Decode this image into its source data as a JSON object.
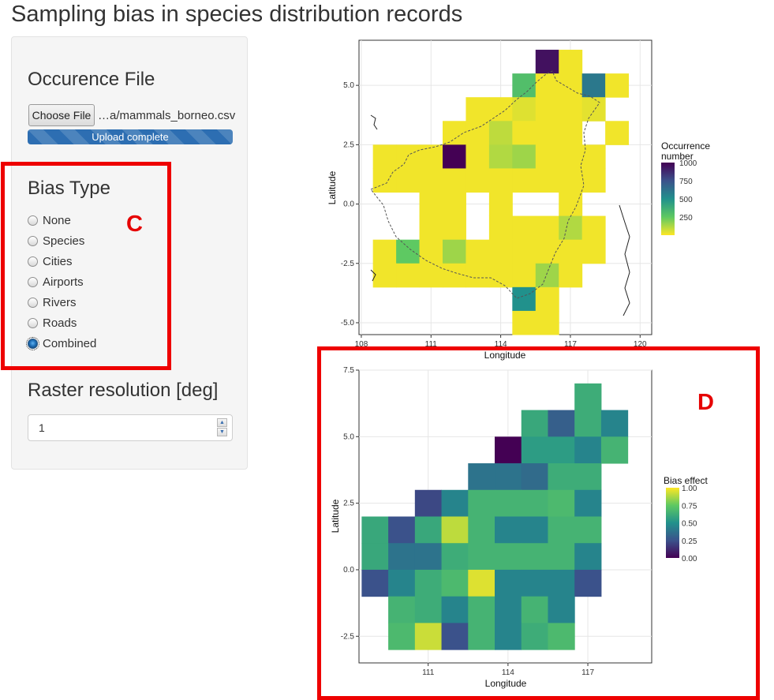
{
  "title": "Sampling bias in species distribution records",
  "sidebar": {
    "occurrence_label": "Occurence File",
    "choose_button": "Choose File",
    "file_name": "…a/mammals_borneo.csv",
    "upload_status": "Upload complete",
    "upload_progress": 1.0,
    "bias_label": "Bias Type",
    "bias_options": [
      "None",
      "Species",
      "Cities",
      "Airports",
      "Rivers",
      "Roads",
      "Combined"
    ],
    "bias_selected": "Combined",
    "raster_label": "Raster resolution [deg]",
    "raster_value": "1"
  },
  "annotations": {
    "c_letter": "C",
    "d_letter": "D",
    "box_color": "#ee0000"
  },
  "chart_data": [
    {
      "type": "heatmap",
      "title": "",
      "xlabel": "Longitude",
      "ylabel": "Latitude",
      "xticks": [
        "108",
        "111",
        "114",
        "117",
        "120"
      ],
      "yticks": [
        "5.0",
        "2.5",
        "0.0",
        "-2.5",
        "-5.0"
      ],
      "xlim": [
        107.9,
        120.5
      ],
      "ylim": [
        -5.5,
        6.9
      ],
      "legend_title": "Occurrence\nnumber",
      "legend_ticks": [
        "1000",
        "750",
        "500",
        "250"
      ],
      "color_range": [
        1,
        1000
      ],
      "cells": [
        [
          116,
          6,
          950
        ],
        [
          117,
          6,
          20
        ],
        [
          115,
          5,
          300
        ],
        [
          116,
          5,
          20
        ],
        [
          117,
          5,
          20
        ],
        [
          118,
          5,
          600
        ],
        [
          119,
          5,
          20
        ],
        [
          113,
          4,
          20
        ],
        [
          114,
          4,
          20
        ],
        [
          115,
          4,
          50
        ],
        [
          116,
          4,
          20
        ],
        [
          117,
          4,
          20
        ],
        [
          118,
          4,
          40
        ],
        [
          112,
          3,
          20
        ],
        [
          113,
          3,
          20
        ],
        [
          114,
          3,
          100
        ],
        [
          115,
          3,
          20
        ],
        [
          116,
          3,
          20
        ],
        [
          117,
          3,
          20
        ],
        [
          119,
          3,
          20
        ],
        [
          109,
          2,
          20
        ],
        [
          110,
          2,
          20
        ],
        [
          111,
          2,
          20
        ],
        [
          112,
          2,
          1000
        ],
        [
          113,
          2,
          20
        ],
        [
          114,
          2,
          120
        ],
        [
          115,
          2,
          150
        ],
        [
          116,
          2,
          20
        ],
        [
          117,
          2,
          20
        ],
        [
          118,
          2,
          20
        ],
        [
          109,
          1,
          20
        ],
        [
          110,
          1,
          20
        ],
        [
          111,
          1,
          20
        ],
        [
          112,
          1,
          20
        ],
        [
          113,
          1,
          20
        ],
        [
          114,
          1,
          20
        ],
        [
          115,
          1,
          20
        ],
        [
          116,
          1,
          20
        ],
        [
          117,
          1,
          20
        ],
        [
          118,
          1,
          20
        ],
        [
          111,
          0,
          20
        ],
        [
          112,
          0,
          20
        ],
        [
          114,
          0,
          20
        ],
        [
          117,
          0,
          20
        ],
        [
          111,
          -1,
          20
        ],
        [
          112,
          -1,
          20
        ],
        [
          114,
          -1,
          20
        ],
        [
          115,
          -1,
          20
        ],
        [
          116,
          -1,
          20
        ],
        [
          117,
          -1,
          120
        ],
        [
          118,
          -1,
          20
        ],
        [
          109,
          -2,
          20
        ],
        [
          110,
          -2,
          250
        ],
        [
          111,
          -2,
          20
        ],
        [
          112,
          -2,
          150
        ],
        [
          113,
          -2,
          20
        ],
        [
          114,
          -2,
          20
        ],
        [
          115,
          -2,
          20
        ],
        [
          116,
          -2,
          20
        ],
        [
          117,
          -2,
          20
        ],
        [
          118,
          -2,
          20
        ],
        [
          109,
          -3,
          20
        ],
        [
          110,
          -3,
          20
        ],
        [
          111,
          -3,
          20
        ],
        [
          112,
          -3,
          20
        ],
        [
          113,
          -3,
          20
        ],
        [
          114,
          -3,
          20
        ],
        [
          115,
          -3,
          20
        ],
        [
          116,
          -3,
          150
        ],
        [
          117,
          -3,
          20
        ],
        [
          115,
          -4,
          500
        ],
        [
          116,
          -4,
          20
        ],
        [
          115,
          -5,
          20
        ],
        [
          116,
          -5,
          20
        ]
      ]
    },
    {
      "type": "heatmap",
      "title": "",
      "xlabel": "Longitude",
      "ylabel": "Latitude",
      "xticks": [
        "111",
        "114",
        "117"
      ],
      "yticks": [
        "7.5",
        "5.0",
        "2.5",
        "0.0",
        "-2.5"
      ],
      "xlim": [
        108.4,
        119.4
      ],
      "ylim": [
        -3.5,
        7.5
      ],
      "legend_title": "Bias effect",
      "legend_ticks": [
        "1.00",
        "0.75",
        "0.50",
        "0.25",
        "0.00"
      ],
      "color_range": [
        0,
        1
      ],
      "cells": [
        [
          117,
          6.5,
          0.62
        ],
        [
          115,
          5.5,
          0.6
        ],
        [
          116,
          5.5,
          0.3
        ],
        [
          117,
          5.5,
          0.62
        ],
        [
          118,
          5.5,
          0.45
        ],
        [
          114,
          4.5,
          0.0
        ],
        [
          115,
          4.5,
          0.55
        ],
        [
          116,
          4.5,
          0.55
        ],
        [
          117,
          4.5,
          0.45
        ],
        [
          118,
          4.5,
          0.65
        ],
        [
          113,
          3.5,
          0.38
        ],
        [
          114,
          3.5,
          0.38
        ],
        [
          115,
          3.5,
          0.35
        ],
        [
          116,
          3.5,
          0.62
        ],
        [
          117,
          3.5,
          0.62
        ],
        [
          111,
          2.5,
          0.22
        ],
        [
          112,
          2.5,
          0.45
        ],
        [
          113,
          2.5,
          0.65
        ],
        [
          114,
          2.5,
          0.65
        ],
        [
          115,
          2.5,
          0.65
        ],
        [
          116,
          2.5,
          0.68
        ],
        [
          117,
          2.5,
          0.45
        ],
        [
          109,
          1.5,
          0.6
        ],
        [
          110,
          1.5,
          0.25
        ],
        [
          111,
          1.5,
          0.6
        ],
        [
          112,
          1.5,
          0.9
        ],
        [
          113,
          1.5,
          0.65
        ],
        [
          114,
          1.5,
          0.45
        ],
        [
          115,
          1.5,
          0.45
        ],
        [
          116,
          1.5,
          0.65
        ],
        [
          117,
          1.5,
          0.65
        ],
        [
          109,
          0.5,
          0.6
        ],
        [
          110,
          0.5,
          0.38
        ],
        [
          111,
          0.5,
          0.38
        ],
        [
          112,
          0.5,
          0.62
        ],
        [
          113,
          0.5,
          0.65
        ],
        [
          114,
          0.5,
          0.65
        ],
        [
          115,
          0.5,
          0.65
        ],
        [
          116,
          0.5,
          0.65
        ],
        [
          117,
          0.5,
          0.45
        ],
        [
          109,
          -0.5,
          0.25
        ],
        [
          110,
          -0.5,
          0.45
        ],
        [
          111,
          -0.5,
          0.62
        ],
        [
          112,
          -0.5,
          0.68
        ],
        [
          113,
          -0.5,
          0.95
        ],
        [
          114,
          -0.5,
          0.45
        ],
        [
          115,
          -0.5,
          0.45
        ],
        [
          116,
          -0.5,
          0.45
        ],
        [
          117,
          -0.5,
          0.25
        ],
        [
          110,
          -1.5,
          0.65
        ],
        [
          111,
          -1.5,
          0.62
        ],
        [
          112,
          -1.5,
          0.45
        ],
        [
          113,
          -1.5,
          0.65
        ],
        [
          114,
          -1.5,
          0.45
        ],
        [
          115,
          -1.5,
          0.65
        ],
        [
          116,
          -1.5,
          0.45
        ],
        [
          110,
          -2.5,
          0.68
        ],
        [
          111,
          -2.5,
          0.92
        ],
        [
          112,
          -2.5,
          0.25
        ],
        [
          113,
          -2.5,
          0.65
        ],
        [
          114,
          -2.5,
          0.45
        ],
        [
          115,
          -2.5,
          0.62
        ],
        [
          116,
          -2.5,
          0.68
        ]
      ]
    }
  ]
}
